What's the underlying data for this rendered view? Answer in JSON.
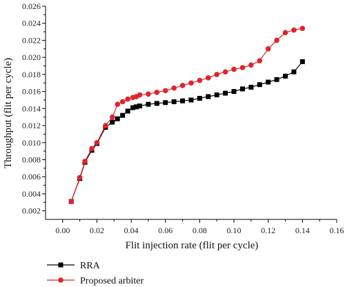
{
  "chart_data": {
    "type": "line",
    "title": "",
    "xlabel": "Flit injection rate (flit per cycle)",
    "ylabel": "Throughput (flit per cycle)",
    "xlim": [
      -0.01,
      0.16
    ],
    "ylim": [
      0.001,
      0.026
    ],
    "x_ticks": [
      0.0,
      0.02,
      0.04,
      0.06,
      0.08,
      0.1,
      0.12,
      0.14,
      0.16
    ],
    "x_tick_labels": [
      "0.00",
      "0.02",
      "0.04",
      "0.06",
      "0.08",
      "0.10",
      "0.12",
      "0.14",
      "0.16"
    ],
    "y_ticks": [
      0.002,
      0.004,
      0.006,
      0.008,
      0.01,
      0.012,
      0.014,
      0.016,
      0.018,
      0.02,
      0.022,
      0.024,
      0.026
    ],
    "y_tick_labels": [
      "0.002",
      "0.004",
      "0.006",
      "0.008",
      "0.010",
      "0.012",
      "0.014",
      "0.016",
      "0.018",
      "0.020",
      "0.022",
      "0.024",
      "0.026"
    ],
    "grid": false,
    "legend_position": "bottom-left",
    "series": [
      {
        "name": "RRA",
        "color": "#000000",
        "marker": "square",
        "x": [
          0.005,
          0.01,
          0.013,
          0.017,
          0.02,
          0.025,
          0.029,
          0.032,
          0.035,
          0.038,
          0.041,
          0.043,
          0.045,
          0.05,
          0.055,
          0.06,
          0.065,
          0.07,
          0.075,
          0.08,
          0.085,
          0.09,
          0.095,
          0.1,
          0.105,
          0.11,
          0.115,
          0.12,
          0.125,
          0.13,
          0.135,
          0.14
        ],
        "y": [
          0.0031,
          0.0058,
          0.0077,
          0.0091,
          0.0099,
          0.0118,
          0.0124,
          0.0128,
          0.0132,
          0.0137,
          0.0141,
          0.0142,
          0.0143,
          0.0145,
          0.0146,
          0.0147,
          0.0148,
          0.0149,
          0.015,
          0.0152,
          0.0154,
          0.0156,
          0.0158,
          0.016,
          0.0163,
          0.0165,
          0.0168,
          0.0171,
          0.0174,
          0.0178,
          0.0183,
          0.0195
        ]
      },
      {
        "name": "Proposed arbiter",
        "color": "#e0242b",
        "marker": "circle",
        "x": [
          0.005,
          0.01,
          0.013,
          0.017,
          0.02,
          0.025,
          0.029,
          0.032,
          0.035,
          0.038,
          0.041,
          0.043,
          0.045,
          0.05,
          0.055,
          0.06,
          0.065,
          0.07,
          0.075,
          0.08,
          0.085,
          0.09,
          0.095,
          0.1,
          0.105,
          0.11,
          0.115,
          0.12,
          0.125,
          0.13,
          0.135,
          0.14
        ],
        "y": [
          0.0031,
          0.0059,
          0.0078,
          0.0093,
          0.01,
          0.012,
          0.013,
          0.0145,
          0.0148,
          0.0151,
          0.0153,
          0.0154,
          0.0156,
          0.0157,
          0.0159,
          0.0161,
          0.0164,
          0.0167,
          0.017,
          0.0173,
          0.0176,
          0.018,
          0.0183,
          0.0186,
          0.0188,
          0.0191,
          0.0196,
          0.021,
          0.022,
          0.0229,
          0.0232,
          0.0234
        ]
      }
    ]
  }
}
